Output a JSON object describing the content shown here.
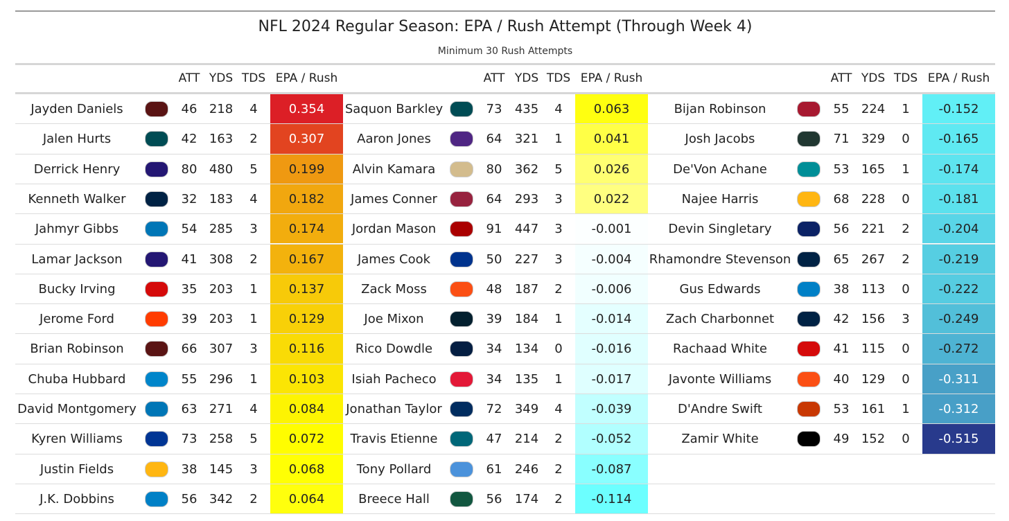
{
  "title": "NFL 2024 Regular Season: EPA / Rush Attempt (Through Week 4)",
  "subtitle": "Minimum 30 Rush Attempts",
  "chart_data": {
    "type": "table",
    "columns": [
      "",
      "",
      "ATT",
      "YDS",
      "TDS",
      "EPA / Rush"
    ],
    "color_scale": {
      "high": "#dc1f26",
      "mid_high": "#ffff00",
      "zero": "#ffffff",
      "mid_low": "#66ffff",
      "low": "#283a8c"
    },
    "blocks": [
      [
        {
          "name": "Jayden Daniels",
          "team": "WAS",
          "team_color": "#5a1414",
          "att": "46",
          "yds": "218",
          "tds": "4",
          "epa": "0.354"
        },
        {
          "name": "Jalen Hurts",
          "team": "PHI",
          "team_color": "#004c54",
          "att": "42",
          "yds": "163",
          "tds": "2",
          "epa": "0.307"
        },
        {
          "name": "Derrick Henry",
          "team": "BAL",
          "team_color": "#241773",
          "att": "80",
          "yds": "480",
          "tds": "5",
          "epa": "0.199"
        },
        {
          "name": "Kenneth Walker",
          "team": "SEA",
          "team_color": "#002244",
          "att": "32",
          "yds": "183",
          "tds": "4",
          "epa": "0.182"
        },
        {
          "name": "Jahmyr Gibbs",
          "team": "DET",
          "team_color": "#0076b6",
          "att": "54",
          "yds": "285",
          "tds": "3",
          "epa": "0.174"
        },
        {
          "name": "Lamar Jackson",
          "team": "BAL",
          "team_color": "#241773",
          "att": "41",
          "yds": "308",
          "tds": "2",
          "epa": "0.167"
        },
        {
          "name": "Bucky Irving",
          "team": "TB",
          "team_color": "#d50a0a",
          "att": "35",
          "yds": "203",
          "tds": "1",
          "epa": "0.137"
        },
        {
          "name": "Jerome Ford",
          "team": "CLE",
          "team_color": "#ff3c00",
          "att": "39",
          "yds": "203",
          "tds": "1",
          "epa": "0.129"
        },
        {
          "name": "Brian Robinson",
          "team": "WAS",
          "team_color": "#5a1414",
          "att": "66",
          "yds": "307",
          "tds": "3",
          "epa": "0.116"
        },
        {
          "name": "Chuba Hubbard",
          "team": "CAR",
          "team_color": "#0085ca",
          "att": "55",
          "yds": "296",
          "tds": "1",
          "epa": "0.103"
        },
        {
          "name": "David Montgomery",
          "team": "DET",
          "team_color": "#0076b6",
          "att": "63",
          "yds": "271",
          "tds": "4",
          "epa": "0.084"
        },
        {
          "name": "Kyren Williams",
          "team": "LAR",
          "team_color": "#003594",
          "att": "73",
          "yds": "258",
          "tds": "5",
          "epa": "0.072"
        },
        {
          "name": "Justin Fields",
          "team": "PIT",
          "team_color": "#ffb612",
          "att": "38",
          "yds": "145",
          "tds": "3",
          "epa": "0.068"
        },
        {
          "name": "J.K. Dobbins",
          "team": "LAC",
          "team_color": "#0080c6",
          "att": "56",
          "yds": "342",
          "tds": "2",
          "epa": "0.064"
        }
      ],
      [
        {
          "name": "Saquon Barkley",
          "team": "PHI",
          "team_color": "#004c54",
          "att": "73",
          "yds": "435",
          "tds": "4",
          "epa": "0.063"
        },
        {
          "name": "Aaron Jones",
          "team": "MIN",
          "team_color": "#4f2683",
          "att": "64",
          "yds": "321",
          "tds": "1",
          "epa": "0.041"
        },
        {
          "name": "Alvin Kamara",
          "team": "NO",
          "team_color": "#d3bc8d",
          "att": "80",
          "yds": "362",
          "tds": "5",
          "epa": "0.026"
        },
        {
          "name": "James Conner",
          "team": "ARI",
          "team_color": "#97233f",
          "att": "64",
          "yds": "293",
          "tds": "3",
          "epa": "0.022"
        },
        {
          "name": "Jordan Mason",
          "team": "SF",
          "team_color": "#aa0000",
          "att": "91",
          "yds": "447",
          "tds": "3",
          "epa": "-0.001"
        },
        {
          "name": "James Cook",
          "team": "BUF",
          "team_color": "#00338d",
          "att": "50",
          "yds": "227",
          "tds": "3",
          "epa": "-0.004"
        },
        {
          "name": "Zack Moss",
          "team": "CIN",
          "team_color": "#fb4f14",
          "att": "48",
          "yds": "187",
          "tds": "2",
          "epa": "-0.006"
        },
        {
          "name": "Joe Mixon",
          "team": "HOU",
          "team_color": "#03202f",
          "att": "39",
          "yds": "184",
          "tds": "1",
          "epa": "-0.014"
        },
        {
          "name": "Rico Dowdle",
          "team": "DAL",
          "team_color": "#041e42",
          "att": "34",
          "yds": "134",
          "tds": "0",
          "epa": "-0.016"
        },
        {
          "name": "Isiah Pacheco",
          "team": "KC",
          "team_color": "#e31837",
          "att": "34",
          "yds": "135",
          "tds": "1",
          "epa": "-0.017"
        },
        {
          "name": "Jonathan Taylor",
          "team": "IND",
          "team_color": "#002c5f",
          "att": "72",
          "yds": "349",
          "tds": "4",
          "epa": "-0.039"
        },
        {
          "name": "Travis Etienne",
          "team": "JAX",
          "team_color": "#006778",
          "att": "47",
          "yds": "214",
          "tds": "2",
          "epa": "-0.052"
        },
        {
          "name": "Tony Pollard",
          "team": "TEN",
          "team_color": "#4b92db",
          "att": "61",
          "yds": "246",
          "tds": "2",
          "epa": "-0.087"
        },
        {
          "name": "Breece Hall",
          "team": "NYJ",
          "team_color": "#125740",
          "att": "56",
          "yds": "174",
          "tds": "2",
          "epa": "-0.114"
        }
      ],
      [
        {
          "name": "Bijan Robinson",
          "team": "ATL",
          "team_color": "#a71930",
          "att": "55",
          "yds": "224",
          "tds": "1",
          "epa": "-0.152"
        },
        {
          "name": "Josh Jacobs",
          "team": "GB",
          "team_color": "#203731",
          "att": "71",
          "yds": "329",
          "tds": "0",
          "epa": "-0.165"
        },
        {
          "name": "De'Von Achane",
          "team": "MIA",
          "team_color": "#008e97",
          "att": "53",
          "yds": "165",
          "tds": "1",
          "epa": "-0.174"
        },
        {
          "name": "Najee Harris",
          "team": "PIT",
          "team_color": "#ffb612",
          "att": "68",
          "yds": "228",
          "tds": "0",
          "epa": "-0.181"
        },
        {
          "name": "Devin Singletary",
          "team": "NYG",
          "team_color": "#0b2265",
          "att": "56",
          "yds": "221",
          "tds": "2",
          "epa": "-0.204"
        },
        {
          "name": "Rhamondre Stevenson",
          "team": "NE",
          "team_color": "#002244",
          "att": "65",
          "yds": "267",
          "tds": "2",
          "epa": "-0.219"
        },
        {
          "name": "Gus Edwards",
          "team": "LAC",
          "team_color": "#0080c6",
          "att": "38",
          "yds": "113",
          "tds": "0",
          "epa": "-0.222"
        },
        {
          "name": "Zach Charbonnet",
          "team": "SEA",
          "team_color": "#002244",
          "att": "42",
          "yds": "156",
          "tds": "3",
          "epa": "-0.249"
        },
        {
          "name": "Rachaad White",
          "team": "TB",
          "team_color": "#d50a0a",
          "att": "41",
          "yds": "115",
          "tds": "0",
          "epa": "-0.272"
        },
        {
          "name": "Javonte Williams",
          "team": "DEN",
          "team_color": "#fb4f14",
          "att": "40",
          "yds": "129",
          "tds": "0",
          "epa": "-0.311"
        },
        {
          "name": "D'Andre Swift",
          "team": "CHI",
          "team_color": "#c83803",
          "att": "53",
          "yds": "161",
          "tds": "1",
          "epa": "-0.312"
        },
        {
          "name": "Zamir White",
          "team": "LV",
          "team_color": "#000000",
          "att": "49",
          "yds": "152",
          "tds": "0",
          "epa": "-0.515"
        }
      ]
    ]
  }
}
